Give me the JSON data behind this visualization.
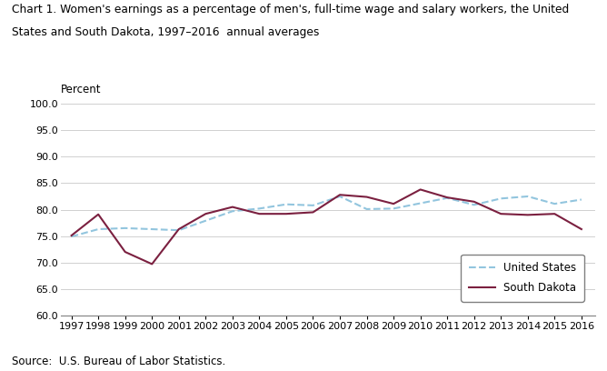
{
  "title_line1": "Chart 1. Women's earnings as a percentage of men's, full-time wage and salary workers, the United",
  "title_line2": "States and South Dakota, 1997–2016  annual averages",
  "ylabel": "Percent",
  "source": "Source:  U.S. Bureau of Labor Statistics.",
  "years": [
    1997,
    1998,
    1999,
    2000,
    2001,
    2002,
    2003,
    2004,
    2005,
    2006,
    2007,
    2008,
    2009,
    2010,
    2011,
    2012,
    2013,
    2014,
    2015,
    2016
  ],
  "us_values": [
    74.9,
    76.3,
    76.5,
    76.3,
    76.1,
    77.9,
    79.7,
    80.2,
    81.0,
    80.8,
    82.5,
    80.1,
    80.2,
    81.2,
    82.2,
    80.9,
    82.1,
    82.5,
    81.1,
    81.9
  ],
  "sd_values": [
    75.1,
    79.1,
    72.0,
    69.7,
    76.3,
    79.2,
    80.5,
    79.2,
    79.2,
    79.5,
    82.8,
    82.4,
    81.1,
    83.8,
    82.3,
    81.5,
    79.2,
    79.0,
    79.2,
    76.3
  ],
  "us_color": "#92C5DE",
  "sd_color": "#7B2040",
  "ylim": [
    60.0,
    100.0
  ],
  "yticks": [
    60.0,
    65.0,
    70.0,
    75.0,
    80.0,
    85.0,
    90.0,
    95.0,
    100.0
  ],
  "title_fontsize": 8.8,
  "label_fontsize": 8.5,
  "tick_fontsize": 8.0,
  "source_fontsize": 8.5,
  "legend_fontsize": 8.5
}
